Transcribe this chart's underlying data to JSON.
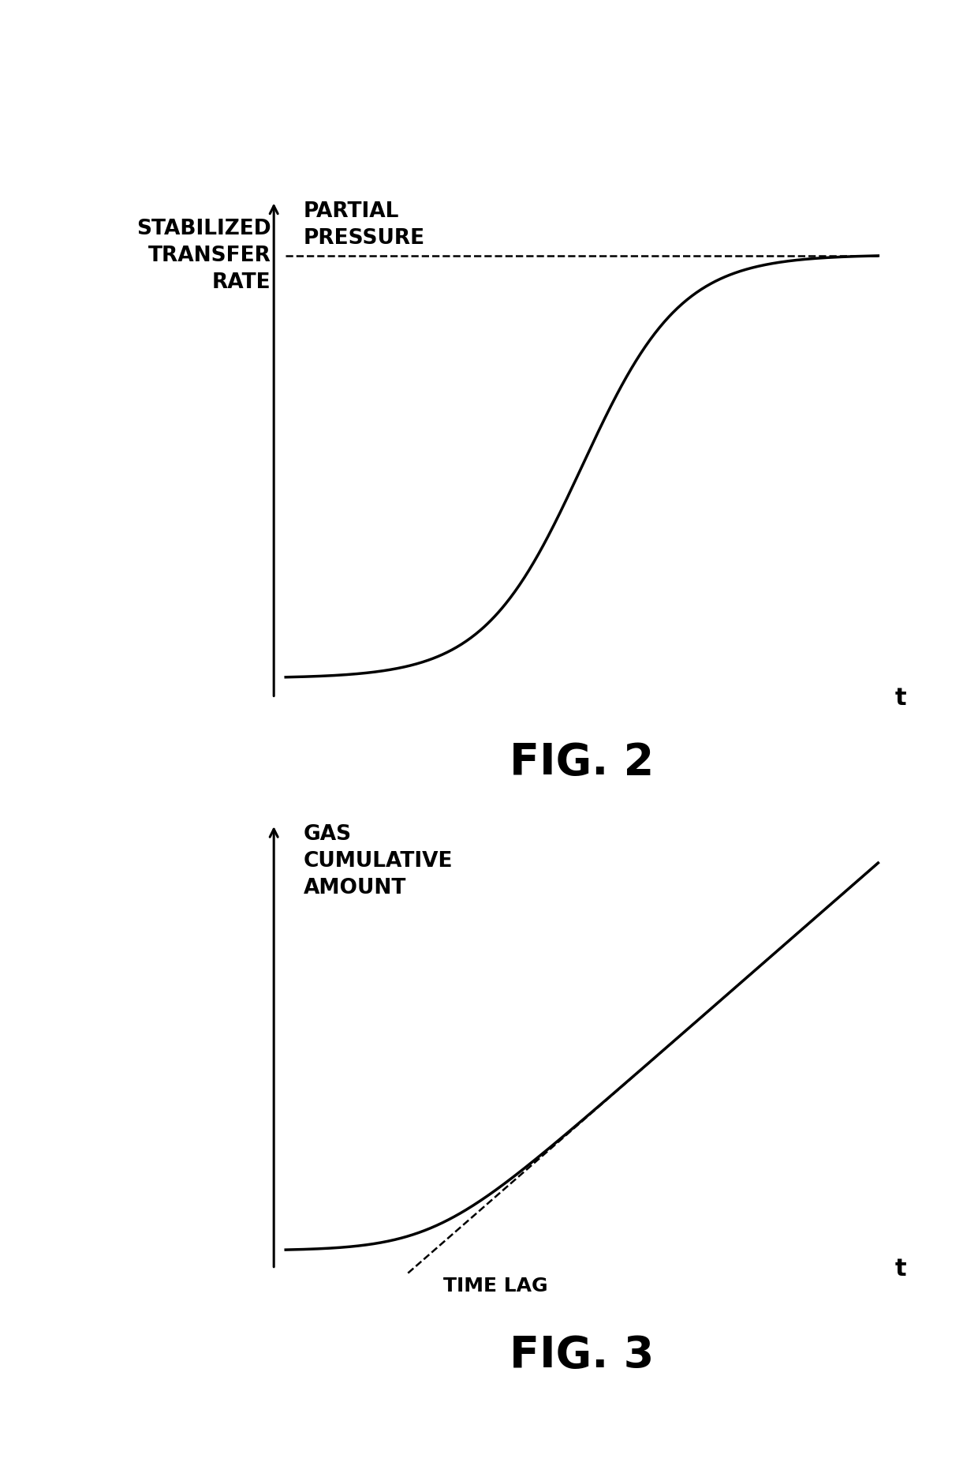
{
  "fig2_title": "FIG. 2",
  "fig3_title": "FIG. 3",
  "fig2_ylabel": "PARTIAL\nPRESSURE",
  "fig2_stabilized_label": "STABILIZED\nTRANSFER\nRATE",
  "fig2_xlabel": "t",
  "fig3_ylabel": "GAS\nCUMULATIVE\nAMOUNT",
  "fig3_xlabel": "t",
  "fig3_timelag_label": "TIME LAG",
  "background_color": "#ffffff",
  "line_color": "#000000",
  "dashed_color": "#000000",
  "title_fontsize": 40,
  "label_fontsize": 19,
  "axis_t_fontsize": 22
}
